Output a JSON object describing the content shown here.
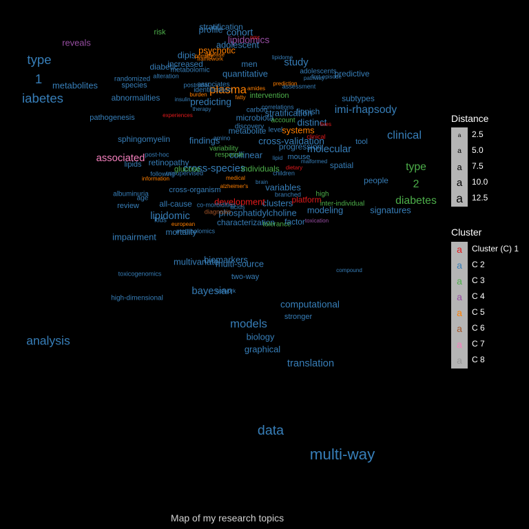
{
  "caption": "Map of my research topics",
  "legend_distance": {
    "title": "Distance",
    "items": [
      {
        "key": "a",
        "label": "2.5",
        "size": 2.5
      },
      {
        "key": "a",
        "label": "5.0",
        "size": 5.0
      },
      {
        "key": "a",
        "label": "7.5",
        "size": 7.5
      },
      {
        "key": "a",
        "label": "10.0",
        "size": 10.0
      },
      {
        "key": "a",
        "label": "12.5",
        "size": 12.5
      }
    ]
  },
  "legend_cluster": {
    "title": "Cluster",
    "items": [
      {
        "key": "a",
        "label": "Cluster (C) 1",
        "cluster": 1
      },
      {
        "key": "a",
        "label": "C 2",
        "cluster": 2
      },
      {
        "key": "a",
        "label": "C 3",
        "cluster": 3
      },
      {
        "key": "a",
        "label": "C 4",
        "cluster": 4
      },
      {
        "key": "a",
        "label": "C 5",
        "cluster": 5
      },
      {
        "key": "a",
        "label": "C 6",
        "cluster": 6
      },
      {
        "key": "a",
        "label": "C 7",
        "cluster": 7
      },
      {
        "key": "a",
        "label": "C 8",
        "cluster": 8
      }
    ]
  },
  "cluster_colors": {
    "1": "#e41a1c",
    "2": "#377eb8",
    "3": "#4daf4a",
    "4": "#984ea3",
    "5": "#ff7f00",
    "6": "#a65628",
    "7": "#f781bf",
    "8": "#999999"
  },
  "chart_data": {
    "type": "scatter",
    "title": "Map of my research topics",
    "xlim": [
      0,
      650
    ],
    "ylim": [
      0,
      768
    ],
    "grid": false,
    "legend": "right",
    "words": [
      {
        "text": "multi-way",
        "x": 497,
        "y": 661,
        "size": 11.0,
        "cluster": 2
      },
      {
        "text": "data",
        "x": 393,
        "y": 626,
        "size": 9.5,
        "cluster": 2
      },
      {
        "text": "analysis",
        "x": 70,
        "y": 496,
        "size": 8.5,
        "cluster": 2
      },
      {
        "text": "translation",
        "x": 451,
        "y": 528,
        "size": 7.0,
        "cluster": 2
      },
      {
        "text": "models",
        "x": 361,
        "y": 471,
        "size": 8.0,
        "cluster": 2
      },
      {
        "text": "graphical",
        "x": 381,
        "y": 508,
        "size": 6.0,
        "cluster": 2
      },
      {
        "text": "biology",
        "x": 378,
        "y": 490,
        "size": 6.0,
        "cluster": 2
      },
      {
        "text": "computational",
        "x": 450,
        "y": 443,
        "size": 6.5,
        "cluster": 2
      },
      {
        "text": "stronger",
        "x": 433,
        "y": 460,
        "size": 5.0,
        "cluster": 2
      },
      {
        "text": "bayesian",
        "x": 308,
        "y": 423,
        "size": 7.0,
        "cluster": 2
      },
      {
        "text": "network",
        "x": 328,
        "y": 423,
        "size": 3.5,
        "cluster": 2
      },
      {
        "text": "two-way",
        "x": 356,
        "y": 402,
        "size": 5.0,
        "cluster": 2
      },
      {
        "text": "multi-source",
        "x": 348,
        "y": 384,
        "size": 6.0,
        "cluster": 2
      },
      {
        "text": "biomarkers",
        "x": 328,
        "y": 378,
        "size": 6.0,
        "cluster": 2
      },
      {
        "text": "multivariate",
        "x": 285,
        "y": 381,
        "size": 6.0,
        "cluster": 2
      },
      {
        "text": "compound",
        "x": 507,
        "y": 393,
        "size": 3.5,
        "cluster": 2
      },
      {
        "text": "toxicogenomics",
        "x": 203,
        "y": 398,
        "size": 4.0,
        "cluster": 2
      },
      {
        "text": "high-dimensional",
        "x": 199,
        "y": 433,
        "size": 4.5,
        "cluster": 2
      },
      {
        "text": "impairment",
        "x": 195,
        "y": 345,
        "size": 6.0,
        "cluster": 2
      },
      {
        "text": "type",
        "x": 57,
        "y": 88,
        "size": 9.0,
        "cluster": 2
      },
      {
        "text": "1",
        "x": 56,
        "y": 116,
        "size": 9.0,
        "cluster": 2
      },
      {
        "text": "iabetes",
        "x": 62,
        "y": 144,
        "size": 9.0,
        "cluster": 2
      },
      {
        "text": "metabolites",
        "x": 109,
        "y": 125,
        "size": 6.0,
        "cluster": 2
      },
      {
        "text": "reveals",
        "x": 111,
        "y": 63,
        "size": 6.0,
        "cluster": 4
      },
      {
        "text": "abnormalities",
        "x": 197,
        "y": 143,
        "size": 5.5,
        "cluster": 2
      },
      {
        "text": "pathogenesis",
        "x": 163,
        "y": 171,
        "size": 5.0,
        "cluster": 2
      },
      {
        "text": "randomized",
        "x": 192,
        "y": 115,
        "size": 4.5,
        "cluster": 2
      },
      {
        "text": "species",
        "x": 195,
        "y": 124,
        "size": 5.0,
        "cluster": 2
      },
      {
        "text": "sphingomyelin",
        "x": 209,
        "y": 203,
        "size": 5.5,
        "cluster": 2
      },
      {
        "text": "associated",
        "x": 175,
        "y": 230,
        "size": 7.0,
        "cluster": 7
      },
      {
        "text": "lipids",
        "x": 193,
        "y": 239,
        "size": 5.0,
        "cluster": 2
      },
      {
        "text": "retinopathy",
        "x": 245,
        "y": 237,
        "size": 5.5,
        "cluster": 2
      },
      {
        "text": "albuminuria",
        "x": 190,
        "y": 282,
        "size": 4.5,
        "cluster": 2
      },
      {
        "text": "review",
        "x": 186,
        "y": 299,
        "size": 5.0,
        "cluster": 2
      },
      {
        "text": "all-cause",
        "x": 255,
        "y": 297,
        "size": 5.5,
        "cluster": 2
      },
      {
        "text": "lipidomic",
        "x": 247,
        "y": 314,
        "size": 7.0,
        "cluster": 2
      },
      {
        "text": "mortality",
        "x": 263,
        "y": 338,
        "size": 5.5,
        "cluster": 2
      },
      {
        "text": "cross-organism",
        "x": 283,
        "y": 276,
        "size": 5.0,
        "cluster": 2
      },
      {
        "text": "cross-species",
        "x": 311,
        "y": 245,
        "size": 7.0,
        "cluster": 2
      },
      {
        "text": "findings",
        "x": 297,
        "y": 205,
        "size": 6.0,
        "cluster": 2
      },
      {
        "text": "collinear",
        "x": 357,
        "y": 226,
        "size": 6.0,
        "cluster": 2
      },
      {
        "text": "individuals",
        "x": 378,
        "y": 246,
        "size": 5.5,
        "cluster": 3
      },
      {
        "text": "variables",
        "x": 411,
        "y": 273,
        "size": 6.0,
        "cluster": 2
      },
      {
        "text": "clusters",
        "x": 403,
        "y": 296,
        "size": 6.0,
        "cluster": 2
      },
      {
        "text": "development",
        "x": 348,
        "y": 294,
        "size": 6.0,
        "cluster": 1
      },
      {
        "text": "phosphatidylcholine",
        "x": 374,
        "y": 310,
        "size": 6.0,
        "cluster": 2
      },
      {
        "text": "characterization",
        "x": 357,
        "y": 324,
        "size": 5.5,
        "cluster": 2
      },
      {
        "text": "tolerance",
        "x": 402,
        "y": 326,
        "size": 4.5,
        "cluster": 3
      },
      {
        "text": "factor",
        "x": 428,
        "y": 323,
        "size": 5.5,
        "cluster": 2
      },
      {
        "text": "platform",
        "x": 445,
        "y": 291,
        "size": 5.5,
        "cluster": 1
      },
      {
        "text": "modeling",
        "x": 472,
        "y": 306,
        "size": 6.0,
        "cluster": 2
      },
      {
        "text": "inter-individual",
        "x": 497,
        "y": 296,
        "size": 4.5,
        "cluster": 3
      },
      {
        "text": "signatures",
        "x": 567,
        "y": 306,
        "size": 6.0,
        "cluster": 2
      },
      {
        "text": "people",
        "x": 546,
        "y": 263,
        "size": 5.5,
        "cluster": 2
      },
      {
        "text": "spatial",
        "x": 496,
        "y": 241,
        "size": 5.5,
        "cluster": 2
      },
      {
        "text": "molecular",
        "x": 478,
        "y": 217,
        "size": 7.0,
        "cluster": 2
      },
      {
        "text": "tool",
        "x": 525,
        "y": 206,
        "size": 5.0,
        "cluster": 2
      },
      {
        "text": "cross-validation",
        "x": 423,
        "y": 206,
        "size": 6.5,
        "cluster": 2
      },
      {
        "text": "progression",
        "x": 436,
        "y": 214,
        "size": 5.5,
        "cluster": 2
      },
      {
        "text": "systems",
        "x": 433,
        "y": 190,
        "size": 6.0,
        "cluster": 5
      },
      {
        "text": "distinct",
        "x": 453,
        "y": 179,
        "size": 6.5,
        "cluster": 2
      },
      {
        "text": "finnish",
        "x": 447,
        "y": 163,
        "size": 5.5,
        "cluster": 2
      },
      {
        "text": "stratification",
        "x": 419,
        "y": 165,
        "size": 6.0,
        "cluster": 2
      },
      {
        "text": "microbiota",
        "x": 370,
        "y": 172,
        "size": 5.5,
        "cluster": 2
      },
      {
        "text": "metabolite",
        "x": 359,
        "y": 191,
        "size": 5.5,
        "cluster": 2
      },
      {
        "text": "imi-rhapsody",
        "x": 531,
        "y": 160,
        "size": 7.5,
        "cluster": 2
      },
      {
        "text": "subtypes",
        "x": 520,
        "y": 144,
        "size": 5.5,
        "cluster": 2
      },
      {
        "text": "clinical",
        "x": 587,
        "y": 197,
        "size": 8.0,
        "cluster": 2
      },
      {
        "text": "type",
        "x": 604,
        "y": 243,
        "size": 7.5,
        "cluster": 3
      },
      {
        "text": "2",
        "x": 604,
        "y": 268,
        "size": 7.5,
        "cluster": 3
      },
      {
        "text": "diabetes",
        "x": 604,
        "y": 292,
        "size": 7.5,
        "cluster": 3
      },
      {
        "text": "predictive",
        "x": 511,
        "y": 108,
        "size": 5.5,
        "cluster": 2
      },
      {
        "text": "study",
        "x": 430,
        "y": 91,
        "size": 7.0,
        "cluster": 2
      },
      {
        "text": "adolescents",
        "x": 462,
        "y": 104,
        "size": 4.5,
        "cluster": 2
      },
      {
        "text": "assessment",
        "x": 434,
        "y": 126,
        "size": 4.0,
        "cluster": 2
      },
      {
        "text": "quantitative",
        "x": 356,
        "y": 108,
        "size": 6.0,
        "cluster": 2
      },
      {
        "text": "men",
        "x": 362,
        "y": 94,
        "size": 5.5,
        "cluster": 2
      },
      {
        "text": "plasma",
        "x": 331,
        "y": 131,
        "size": 8.0,
        "cluster": 5
      },
      {
        "text": "intervention",
        "x": 391,
        "y": 139,
        "size": 5.0,
        "cluster": 3
      },
      {
        "text": "psychotic",
        "x": 315,
        "y": 74,
        "size": 6.0,
        "cluster": 5
      },
      {
        "text": "adolescent",
        "x": 345,
        "y": 66,
        "size": 6.0,
        "cluster": 2
      },
      {
        "text": "lipidomics",
        "x": 361,
        "y": 59,
        "size": 6.5,
        "cluster": 4
      },
      {
        "text": "cohort",
        "x": 348,
        "y": 48,
        "size": 6.5,
        "cluster": 2
      },
      {
        "text": "profile",
        "x": 306,
        "y": 44,
        "size": 6.0,
        "cluster": 2
      },
      {
        "text": "stratification",
        "x": 321,
        "y": 40,
        "size": 5.5,
        "cluster": 2
      },
      {
        "text": "risk",
        "x": 232,
        "y": 47,
        "size": 5.0,
        "cluster": 3
      },
      {
        "text": "dipis",
        "x": 271,
        "y": 81,
        "size": 6.0,
        "cluster": 2
      },
      {
        "text": "diabetic",
        "x": 238,
        "y": 98,
        "size": 5.5,
        "cluster": 2
      },
      {
        "text": "increased",
        "x": 269,
        "y": 94,
        "size": 5.5,
        "cluster": 2
      },
      {
        "text": "metabolomic",
        "x": 276,
        "y": 102,
        "size": 4.5,
        "cluster": 2
      },
      {
        "text": "associates",
        "x": 310,
        "y": 123,
        "size": 4.5,
        "cluster": 2
      },
      {
        "text": "predicting",
        "x": 306,
        "y": 149,
        "size": 6.5,
        "cluster": 2
      },
      {
        "text": "identification",
        "x": 309,
        "y": 131,
        "size": 4.5,
        "cluster": 2
      },
      {
        "text": "postnatal",
        "x": 285,
        "y": 124,
        "size": 4.0,
        "cluster": 2
      },
      {
        "text": "variability",
        "x": 325,
        "y": 216,
        "size": 4.5,
        "cluster": 3
      },
      {
        "text": "response",
        "x": 333,
        "y": 225,
        "size": 4.5,
        "cluster": 3
      },
      {
        "text": "amino",
        "x": 322,
        "y": 201,
        "size": 4.0,
        "cluster": 2
      },
      {
        "text": "acids",
        "x": 345,
        "y": 301,
        "size": 4.0,
        "cluster": 2
      },
      {
        "text": "co-morbidities",
        "x": 314,
        "y": 298,
        "size": 4.0,
        "cluster": 2
      },
      {
        "text": "diagnosis",
        "x": 316,
        "y": 308,
        "size": 4.0,
        "cluster": 6
      },
      {
        "text": "post-hoc",
        "x": 228,
        "y": 225,
        "size": 4.0,
        "cluster": 2
      },
      {
        "text": "following",
        "x": 236,
        "y": 253,
        "size": 4.0,
        "cluster": 2
      },
      {
        "text": "glucose",
        "x": 272,
        "y": 246,
        "size": 5.0,
        "cluster": 3
      },
      {
        "text": "unsupervised",
        "x": 268,
        "y": 252,
        "size": 4.0,
        "cluster": 2
      },
      {
        "text": "age",
        "x": 207,
        "y": 288,
        "size": 4.5,
        "cluster": 2
      },
      {
        "text": "kids",
        "x": 233,
        "y": 320,
        "size": 4.5,
        "cluster": 2
      },
      {
        "text": "metabolomics",
        "x": 284,
        "y": 336,
        "size": 4.0,
        "cluster": 2
      },
      {
        "text": "children",
        "x": 412,
        "y": 252,
        "size": 4.0,
        "cluster": 2
      },
      {
        "text": "mouse",
        "x": 434,
        "y": 228,
        "size": 5.0,
        "cluster": 2
      },
      {
        "text": "high",
        "x": 468,
        "y": 282,
        "size": 4.5,
        "cluster": 3
      },
      {
        "text": "branched",
        "x": 418,
        "y": 283,
        "size": 4.0,
        "cluster": 2
      },
      {
        "text": "alzheimer's",
        "x": 340,
        "y": 271,
        "size": 3.5,
        "cluster": 5
      },
      {
        "text": "medical",
        "x": 342,
        "y": 259,
        "size": 3.5,
        "cluster": 5
      },
      {
        "text": "account",
        "x": 411,
        "y": 175,
        "size": 4.5,
        "cluster": 3
      },
      {
        "text": "level",
        "x": 400,
        "y": 189,
        "size": 4.5,
        "cluster": 2
      },
      {
        "text": "discovery",
        "x": 362,
        "y": 184,
        "size": 4.5,
        "cluster": 2
      },
      {
        "text": "carbon",
        "x": 373,
        "y": 160,
        "size": 4.5,
        "cluster": 2
      },
      {
        "text": "correlations",
        "x": 403,
        "y": 156,
        "size": 4.0,
        "cluster": 2
      },
      {
        "text": "insulin",
        "x": 265,
        "y": 145,
        "size": 3.5,
        "cluster": 2
      },
      {
        "text": "alteration",
        "x": 241,
        "y": 111,
        "size": 4.0,
        "cluster": 2
      },
      {
        "text": "therapy",
        "x": 293,
        "y": 159,
        "size": 3.5,
        "cluster": 2
      },
      {
        "text": "primary",
        "x": 296,
        "y": 82,
        "size": 3.5,
        "cluster": 5
      },
      {
        "text": "framework",
        "x": 305,
        "y": 86,
        "size": 3.5,
        "cluster": 5
      },
      {
        "text": "disease",
        "x": 312,
        "y": 80,
        "size": 3.5,
        "cluster": 5
      },
      {
        "text": "burden",
        "x": 288,
        "y": 138,
        "size": 3.5,
        "cluster": 5
      },
      {
        "text": "nmr",
        "x": 370,
        "y": 55,
        "size": 3.5,
        "cluster": 1
      },
      {
        "text": "lipidome",
        "x": 410,
        "y": 84,
        "size": 3.5,
        "cluster": 2
      },
      {
        "text": "prediction",
        "x": 414,
        "y": 122,
        "size": 3.5,
        "cluster": 5
      },
      {
        "text": "fatty",
        "x": 349,
        "y": 142,
        "size": 3.5,
        "cluster": 5
      },
      {
        "text": "amides",
        "x": 372,
        "y": 129,
        "size": 3.5,
        "cluster": 5
      },
      {
        "text": "pathway",
        "x": 456,
        "y": 114,
        "size": 3.5,
        "cluster": 2
      },
      {
        "text": "first-episode",
        "x": 474,
        "y": 112,
        "size": 3.5,
        "cluster": 2
      },
      {
        "text": "clinical",
        "x": 459,
        "y": 199,
        "size": 4.0,
        "cluster": 1
      },
      {
        "text": "lives",
        "x": 473,
        "y": 181,
        "size": 3.5,
        "cluster": 1
      },
      {
        "text": "dietary",
        "x": 427,
        "y": 244,
        "size": 3.5,
        "cluster": 1
      },
      {
        "text": "malformed",
        "x": 456,
        "y": 235,
        "size": 3.5,
        "cluster": 2
      },
      {
        "text": "toxication",
        "x": 460,
        "y": 321,
        "size": 3.5,
        "cluster": 4
      },
      {
        "text": "european",
        "x": 266,
        "y": 326,
        "size": 3.5,
        "cluster": 5
      },
      {
        "text": "information",
        "x": 226,
        "y": 260,
        "size": 3.5,
        "cluster": 5
      },
      {
        "text": "experiences",
        "x": 258,
        "y": 168,
        "size": 3.5,
        "cluster": 1
      },
      {
        "text": "brain",
        "x": 380,
        "y": 265,
        "size": 3.5,
        "cluster": 2
      },
      {
        "text": "lipid",
        "x": 403,
        "y": 230,
        "size": 3.5,
        "cluster": 2
      }
    ]
  }
}
